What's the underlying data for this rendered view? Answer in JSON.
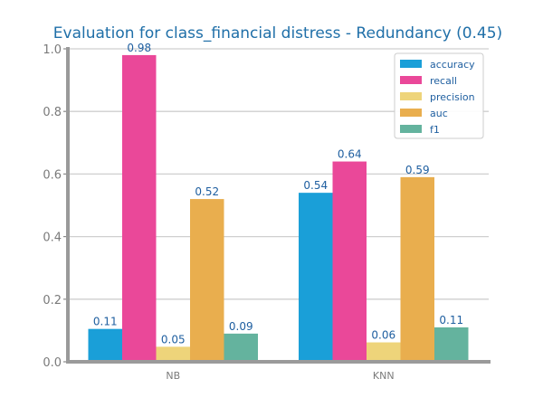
{
  "chart_data": {
    "type": "bar",
    "title": "Evaluation for class_financial distress - Redundancy (0.45)",
    "categories": [
      "NB",
      "KNN"
    ],
    "xlabel": "",
    "ylabel": "",
    "ylim": [
      0,
      1.0
    ],
    "yticks": [
      "0.0",
      "0.2",
      "0.4",
      "0.6",
      "0.8",
      "1.0"
    ],
    "grid": true,
    "legend_position": "top-right",
    "series": [
      {
        "name": "accuracy",
        "color": "#1a9fd8",
        "values": [
          0.105,
          0.54
        ],
        "labels": [
          "0.11",
          "0.54"
        ]
      },
      {
        "name": "recall",
        "color": "#ea4899",
        "values": [
          0.98,
          0.64
        ],
        "labels": [
          "0.98",
          "0.64"
        ]
      },
      {
        "name": "precision",
        "color": "#eed47a",
        "values": [
          0.048,
          0.062
        ],
        "labels": [
          "0.05",
          "0.06"
        ]
      },
      {
        "name": "auc",
        "color": "#e9ae4e",
        "values": [
          0.52,
          0.59
        ],
        "labels": [
          "0.52",
          "0.59"
        ]
      },
      {
        "name": "f1",
        "color": "#64b39e",
        "values": [
          0.09,
          0.11
        ],
        "labels": [
          "0.09",
          "0.11"
        ]
      }
    ]
  }
}
